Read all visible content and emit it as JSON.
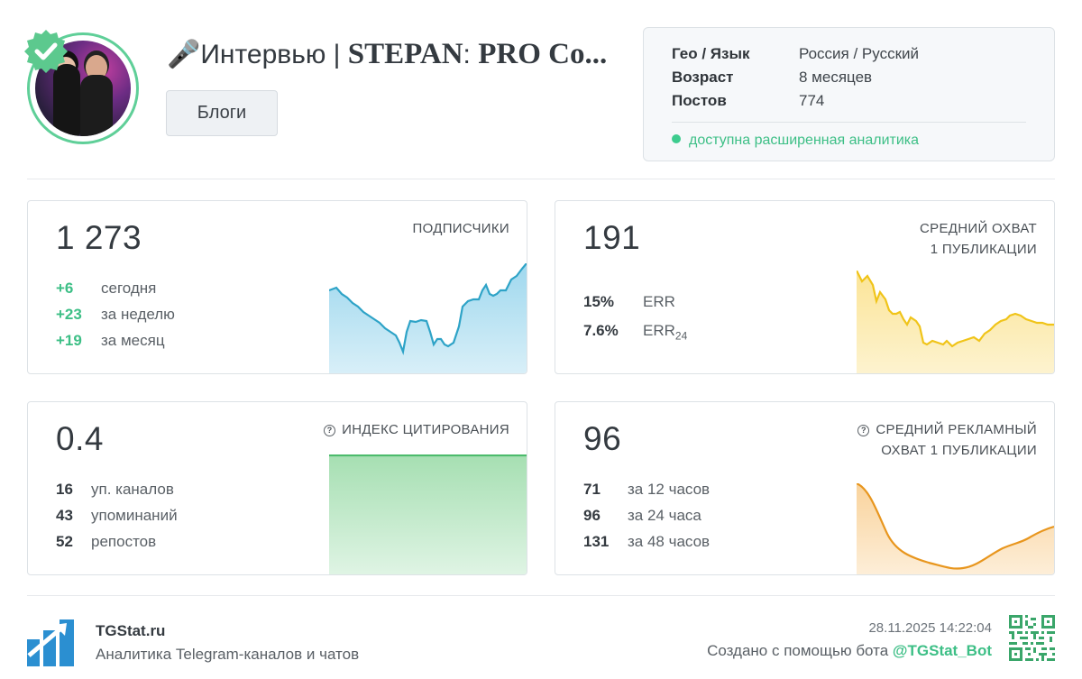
{
  "channel": {
    "title_prefix": "🎤Интервью | ",
    "title_bold": "STEPAN",
    "title_mid": ": ",
    "title_bold2": "PRO Co...",
    "category": "Блоги"
  },
  "info": {
    "geo_label": "Гео / Язык",
    "geo_value": "Россия / Русский",
    "age_label": "Возраст",
    "age_value": "8 месяцев",
    "posts_label": "Постов",
    "posts_value": "774",
    "analytics_status": "доступна расширенная аналитика"
  },
  "cards": {
    "subscribers": {
      "value": "1 273",
      "label": "ПОДПИСЧИКИ",
      "stats": [
        {
          "n": "+6",
          "t": "сегодня"
        },
        {
          "n": "+23",
          "t": "за неделю"
        },
        {
          "n": "+19",
          "t": "за месяц"
        }
      ]
    },
    "reach": {
      "value": "191",
      "label_line1": "СРЕДНИЙ ОХВАТ",
      "label_line2": "1 ПУБЛИКАЦИИ",
      "err": {
        "n": "15%",
        "t": "ERR"
      },
      "err24": {
        "n": "7.6%",
        "t": "ERR",
        "sub": "24"
      }
    },
    "citation": {
      "value": "0.4",
      "label": "ИНДЕКС ЦИТИРОВАНИЯ",
      "stats": [
        {
          "n": "16",
          "t": "уп. каналов"
        },
        {
          "n": "43",
          "t": "упоминаний"
        },
        {
          "n": "52",
          "t": "репостов"
        }
      ]
    },
    "ad_reach": {
      "value": "96",
      "label_line1": "СРЕДНИЙ РЕКЛАМНЫЙ",
      "label_line2": "ОХВАТ 1 ПУБЛИКАЦИИ",
      "stats": [
        {
          "n": "71",
          "t": "за 12 часов"
        },
        {
          "n": "96",
          "t": "за 24 часа"
        },
        {
          "n": "131",
          "t": "за 48 часов"
        }
      ]
    }
  },
  "footer": {
    "brand": "TGStat.ru",
    "tagline": "Аналитика Telegram-каналов и чатов",
    "timestamp": "28.11.2025 14:22:04",
    "created_prefix": "Создано с помощью бота ",
    "bot_handle": "@TGStat_Bot"
  },
  "colors": {
    "accent_green": "#3dbf86",
    "subscribers_line": "#2ea3c7",
    "reach_line": "#f0c419",
    "citation_line": "#4cbb6c",
    "ad_reach_line": "#e8961e"
  }
}
